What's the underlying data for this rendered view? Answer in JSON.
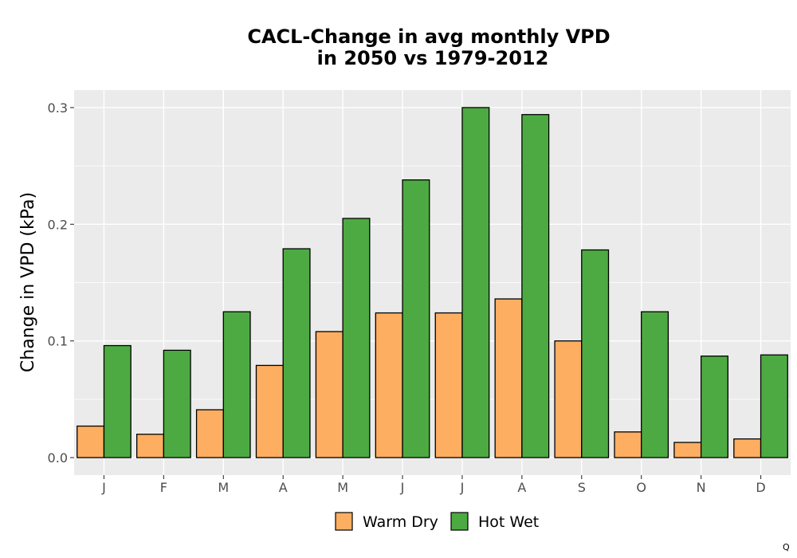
{
  "chart_data": {
    "type": "bar",
    "title": "CACL-Change in avg monthly VPD",
    "subtitle": "in 2050 vs 1979-2012",
    "xlabel": "",
    "ylabel": "Change in VPD (kPa)",
    "categories": [
      "J",
      "F",
      "M",
      "A",
      "M",
      "J",
      "J",
      "A",
      "S",
      "O",
      "N",
      "D"
    ],
    "series": [
      {
        "name": "Warm Dry",
        "color": "#FDAE61",
        "values": [
          0.027,
          0.02,
          0.041,
          0.079,
          0.108,
          0.124,
          0.124,
          0.136,
          0.1,
          0.022,
          0.013,
          0.016
        ]
      },
      {
        "name": "Hot Wet",
        "color": "#4DAA42",
        "values": [
          0.096,
          0.092,
          0.125,
          0.179,
          0.205,
          0.238,
          0.3,
          0.294,
          0.178,
          0.125,
          0.087,
          0.088
        ]
      }
    ],
    "ylim": [
      -0.015,
      0.315
    ],
    "yticks": [
      0.0,
      0.1,
      0.2,
      0.3
    ],
    "ytick_labels": [
      "0.0",
      "0.1",
      "0.2",
      "0.3"
    ],
    "grid": true,
    "legend_position": "bottom",
    "panel_color": "#EBEBEB",
    "bar_outline_color": "#000000"
  },
  "corner_mark": "Q"
}
